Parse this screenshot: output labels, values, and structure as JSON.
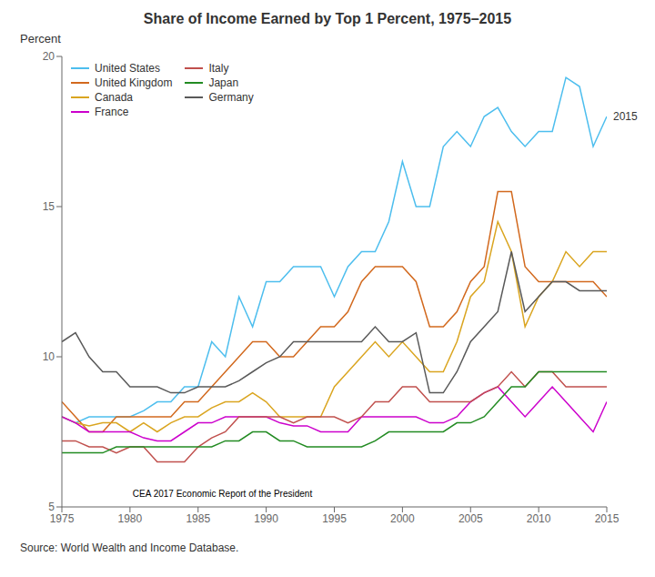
{
  "chart_data": {
    "type": "line",
    "title": "Share of Income Earned by Top 1 Percent, 1975–2015",
    "ylabel": "Percent",
    "source": "Source: World Wealth and Income Database.",
    "watermark": "CEA 2017 Economic Report of the President",
    "annotations": [
      {
        "text": "2015",
        "x": 2015,
        "y": 18.0
      }
    ],
    "x": [
      1975,
      1976,
      1977,
      1978,
      1979,
      1980,
      1981,
      1982,
      1983,
      1984,
      1985,
      1986,
      1987,
      1988,
      1989,
      1990,
      1991,
      1992,
      1993,
      1994,
      1995,
      1996,
      1997,
      1998,
      1999,
      2000,
      2001,
      2002,
      2003,
      2004,
      2005,
      2006,
      2007,
      2008,
      2009,
      2010,
      2011,
      2012,
      2013,
      2014,
      2015
    ],
    "series": [
      {
        "name": "United States",
        "color": "#4DBEEE",
        "values": [
          8.0,
          7.8,
          8.0,
          8.0,
          8.0,
          8.0,
          8.2,
          8.5,
          8.5,
          9.0,
          9.0,
          10.5,
          10.0,
          12.0,
          11.0,
          12.5,
          12.5,
          13.0,
          13.0,
          13.0,
          12.0,
          13.0,
          13.5,
          13.5,
          14.5,
          16.5,
          15.0,
          15.0,
          17.0,
          17.5,
          17.0,
          18.0,
          18.3,
          17.5,
          17.0,
          17.5,
          17.5,
          19.3,
          19.0,
          17.0,
          18.0
        ]
      },
      {
        "name": "United Kingdom",
        "color": "#D2691E",
        "values": [
          8.5,
          8.0,
          7.5,
          7.5,
          8.0,
          8.0,
          8.0,
          8.0,
          8.0,
          8.5,
          8.5,
          9.0,
          9.5,
          10.0,
          10.5,
          10.5,
          10.0,
          10.0,
          10.5,
          11.0,
          11.0,
          11.5,
          12.5,
          13.0,
          13.0,
          13.0,
          12.5,
          11.0,
          11.0,
          11.5,
          12.5,
          13.0,
          15.5,
          15.5,
          13.0,
          12.5,
          12.5,
          12.5,
          12.5,
          12.5,
          12.0
        ]
      },
      {
        "name": "Canada",
        "color": "#DAA520",
        "values": [
          8.0,
          7.8,
          7.7,
          7.8,
          7.8,
          7.5,
          7.8,
          7.5,
          7.8,
          8.0,
          8.0,
          8.3,
          8.5,
          8.5,
          8.8,
          8.5,
          8.0,
          8.0,
          8.0,
          8.0,
          9.0,
          9.5,
          10.0,
          10.5,
          10.0,
          10.5,
          10.0,
          9.5,
          9.5,
          10.5,
          12.0,
          12.5,
          14.5,
          13.5,
          11.0,
          12.0,
          12.5,
          13.5,
          13.0,
          13.5,
          13.5
        ]
      },
      {
        "name": "France",
        "color": "#CC00CC",
        "values": [
          8.0,
          7.8,
          7.5,
          7.5,
          7.5,
          7.5,
          7.3,
          7.2,
          7.2,
          7.5,
          7.8,
          7.8,
          8.0,
          8.0,
          8.0,
          8.0,
          7.8,
          7.7,
          7.7,
          7.5,
          7.5,
          7.5,
          8.0,
          8.0,
          8.0,
          8.0,
          8.0,
          7.8,
          7.8,
          8.0,
          8.5,
          8.8,
          9.0,
          8.5,
          8.0,
          8.5,
          9.0,
          8.5,
          8.0,
          7.5,
          8.5
        ]
      },
      {
        "name": "Italy",
        "color": "#C0504D",
        "values": [
          7.2,
          7.2,
          7.0,
          7.0,
          6.8,
          7.0,
          7.0,
          6.5,
          6.5,
          6.5,
          7.0,
          7.3,
          7.5,
          8.0,
          8.0,
          8.0,
          8.0,
          7.8,
          8.0,
          8.0,
          8.0,
          7.8,
          8.0,
          8.5,
          8.5,
          9.0,
          9.0,
          8.5,
          8.5,
          8.5,
          8.5,
          8.8,
          9.0,
          9.5,
          9.0,
          9.5,
          9.5,
          9.0,
          9.0,
          9.0,
          9.0
        ]
      },
      {
        "name": "Japan",
        "color": "#228B22",
        "values": [
          6.8,
          6.8,
          6.8,
          6.8,
          7.0,
          7.0,
          7.0,
          7.0,
          7.0,
          7.0,
          7.0,
          7.0,
          7.2,
          7.2,
          7.5,
          7.5,
          7.2,
          7.2,
          7.0,
          7.0,
          7.0,
          7.0,
          7.0,
          7.2,
          7.5,
          7.5,
          7.5,
          7.5,
          7.5,
          7.8,
          7.8,
          8.0,
          8.5,
          9.0,
          9.0,
          9.5,
          9.5,
          9.5,
          9.5,
          9.5,
          9.5
        ]
      },
      {
        "name": "Germany",
        "color": "#595959",
        "values": [
          10.5,
          10.8,
          10.0,
          9.5,
          9.5,
          9.0,
          9.0,
          9.0,
          8.8,
          8.8,
          9.0,
          9.0,
          9.0,
          9.2,
          9.5,
          9.8,
          10.0,
          10.5,
          10.5,
          10.5,
          10.5,
          10.5,
          10.5,
          11.0,
          10.5,
          10.5,
          10.8,
          8.8,
          8.8,
          9.5,
          10.5,
          11.0,
          11.5,
          13.5,
          11.5,
          12.0,
          12.5,
          12.5,
          12.2,
          12.2,
          12.2
        ]
      }
    ],
    "xlim": [
      1975,
      2015
    ],
    "xticks": [
      1975,
      1980,
      1985,
      1990,
      1995,
      2000,
      2005,
      2010,
      2015
    ],
    "ylim": [
      5,
      20
    ],
    "yticks": [
      5,
      10,
      15,
      20
    ],
    "grid": false,
    "legend": "upper left"
  }
}
